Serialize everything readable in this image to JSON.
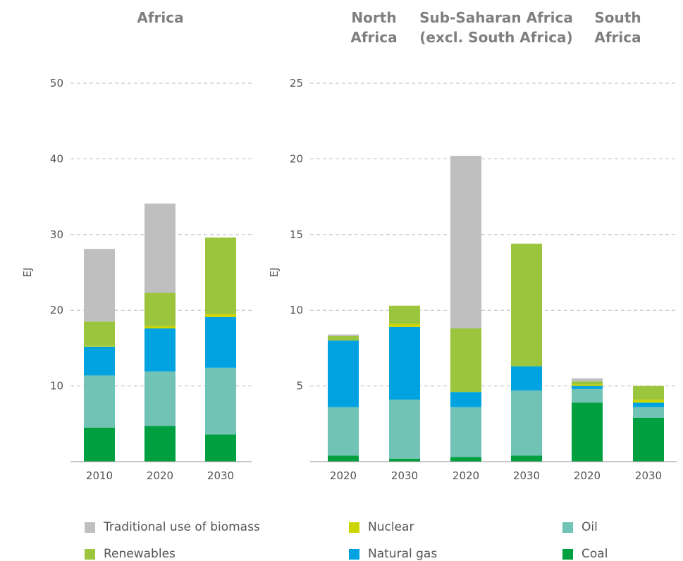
{
  "colors": {
    "Traditional use of biomass": "#bfbfbf",
    "Renewables": "#9bc53d",
    "Nuclear": "#cdd500",
    "Natural gas": "#00a3e0",
    "Oil": "#70c3b5",
    "Coal": "#00a040"
  },
  "chart_data": [
    {
      "type": "bar",
      "stacked": true,
      "title": "Africa",
      "ylabel": "EJ",
      "ylim": [
        0,
        50
      ],
      "yticks": [
        10,
        20,
        30,
        40,
        50
      ],
      "grid": true,
      "categories": [
        "2010",
        "2020",
        "2030"
      ],
      "series": [
        {
          "name": "Coal",
          "values": [
            4.5,
            4.7,
            3.6
          ]
        },
        {
          "name": "Oil",
          "values": [
            6.9,
            7.2,
            8.8
          ]
        },
        {
          "name": "Natural gas",
          "values": [
            3.8,
            5.7,
            6.7
          ]
        },
        {
          "name": "Nuclear",
          "values": [
            0.1,
            0.3,
            0.4
          ]
        },
        {
          "name": "Renewables",
          "values": [
            3.2,
            4.4,
            10.1
          ]
        },
        {
          "name": "Traditional use of biomass",
          "values": [
            9.6,
            11.8,
            0
          ]
        }
      ]
    },
    {
      "type": "bar",
      "stacked": true,
      "ylabel": "EJ",
      "ylim": [
        0,
        25
      ],
      "yticks": [
        5,
        10,
        15,
        20,
        25
      ],
      "grid": true,
      "groups": [
        {
          "label": [
            "North",
            "Africa"
          ],
          "categories": [
            "2020",
            "2030"
          ]
        },
        {
          "label": [
            "Sub-Saharan Africa",
            "(excl. South Africa)"
          ],
          "categories": [
            "2020",
            "2030"
          ]
        },
        {
          "label": [
            "South",
            "Africa"
          ],
          "categories": [
            "2020",
            "2030"
          ]
        }
      ],
      "categories": [
        "2020",
        "2030",
        "2020",
        "2030",
        "2020",
        "2030"
      ],
      "series": [
        {
          "name": "Coal",
          "values": [
            0.4,
            0.2,
            0.3,
            0.4,
            3.9,
            2.9
          ]
        },
        {
          "name": "Oil",
          "values": [
            3.2,
            3.9,
            3.3,
            4.3,
            0.9,
            0.7
          ]
        },
        {
          "name": "Natural gas",
          "values": [
            4.4,
            4.8,
            1.0,
            1.6,
            0.2,
            0.3
          ]
        },
        {
          "name": "Nuclear",
          "values": [
            0,
            0.2,
            0,
            0,
            0.1,
            0.2
          ]
        },
        {
          "name": "Renewables",
          "values": [
            0.3,
            1.2,
            4.2,
            8.1,
            0.2,
            0.9
          ]
        },
        {
          "name": "Traditional use of biomass",
          "values": [
            0.1,
            0,
            11.4,
            0,
            0.2,
            0
          ]
        }
      ]
    }
  ],
  "legend": [
    {
      "label": "Traditional use of biomass",
      "color": "#bfbfbf"
    },
    {
      "label": "Renewables",
      "color": "#9bc53d"
    },
    {
      "label": "Nuclear",
      "color": "#cdd500"
    },
    {
      "label": "Natural gas",
      "color": "#00a3e0"
    },
    {
      "label": "Oil",
      "color": "#70c3b5"
    },
    {
      "label": "Coal",
      "color": "#00a040"
    }
  ]
}
